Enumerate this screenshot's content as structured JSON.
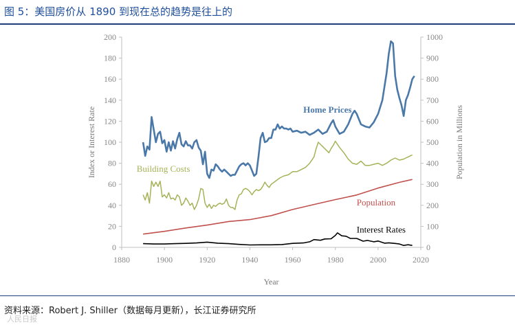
{
  "header": {
    "figure_title": "图 5：美国房价从 1890 到现在总的趋势是往上的"
  },
  "footer": {
    "source": "资料来源：Robert J. Shiller（数据每月更新），长江证券研究所",
    "watermark": "人民日报"
  },
  "chart_data": {
    "type": "line",
    "title": "",
    "xlabel": "Year",
    "ylabel_left": "Index or Interest Rate",
    "ylabel_right": "Population in Millions",
    "xlim": [
      1880,
      2020
    ],
    "ylim_left": [
      0,
      200
    ],
    "ylim_right": [
      0,
      1000
    ],
    "x_ticks": [
      1880,
      1900,
      1920,
      1940,
      1960,
      1980,
      2000,
      2020
    ],
    "y_ticks_left": [
      0,
      20,
      40,
      60,
      80,
      100,
      120,
      140,
      160,
      180,
      200
    ],
    "y_ticks_right": [
      0,
      100,
      200,
      300,
      400,
      500,
      600,
      700,
      800,
      900,
      1000
    ],
    "grid": false,
    "series": [
      {
        "name": "Home Prices",
        "axis": "left",
        "color": "#4a78a8",
        "x": [
          1890,
          1891,
          1892,
          1893,
          1894,
          1895,
          1896,
          1897,
          1898,
          1899,
          1900,
          1901,
          1902,
          1903,
          1904,
          1905,
          1906,
          1907,
          1908,
          1909,
          1910,
          1911,
          1912,
          1913,
          1914,
          1915,
          1916,
          1917,
          1918,
          1919,
          1920,
          1921,
          1922,
          1923,
          1924,
          1925,
          1926,
          1927,
          1928,
          1929,
          1930,
          1931,
          1932,
          1933,
          1934,
          1935,
          1936,
          1937,
          1938,
          1939,
          1940,
          1941,
          1942,
          1943,
          1944,
          1945,
          1946,
          1947,
          1948,
          1949,
          1950,
          1951,
          1952,
          1953,
          1954,
          1955,
          1956,
          1957,
          1958,
          1959,
          1960,
          1962,
          1964,
          1966,
          1968,
          1970,
          1972,
          1974,
          1976,
          1978,
          1979,
          1980,
          1982,
          1984,
          1986,
          1988,
          1989,
          1990,
          1992,
          1994,
          1996,
          1998,
          2000,
          2002,
          2004,
          2005,
          2006,
          2007,
          2008,
          2009,
          2010,
          2011,
          2012,
          2013,
          2014,
          2015,
          2016,
          2017
        ],
        "values": [
          100,
          87,
          96,
          93,
          124,
          112,
          100,
          108,
          110,
          99,
          102,
          91,
          100,
          92,
          101,
          94,
          103,
          109,
          98,
          96,
          101,
          97,
          97,
          94,
          100,
          102,
          95,
          92,
          79,
          91,
          70,
          66,
          74,
          73,
          79,
          77,
          74,
          72,
          74,
          72,
          70,
          68,
          69,
          69,
          73,
          77,
          79,
          80,
          78,
          80,
          78,
          73,
          68,
          70,
          86,
          104,
          109,
          100,
          101,
          104,
          104,
          112,
          112,
          117,
          113,
          115,
          113,
          113,
          112,
          113,
          110,
          111,
          109,
          110,
          107,
          109,
          112,
          108,
          110,
          118,
          121,
          115,
          108,
          110,
          117,
          127,
          130,
          127,
          117,
          115,
          114,
          119,
          127,
          140,
          166,
          184,
          196,
          194,
          163,
          150,
          142,
          135,
          125,
          140,
          145,
          152,
          160,
          163
        ]
      },
      {
        "name": "Building Costs",
        "axis": "left",
        "color": "#a6b257",
        "x": [
          1890,
          1891,
          1892,
          1893,
          1894,
          1895,
          1896,
          1897,
          1898,
          1899,
          1900,
          1901,
          1902,
          1903,
          1904,
          1905,
          1906,
          1907,
          1908,
          1909,
          1910,
          1911,
          1912,
          1913,
          1914,
          1915,
          1916,
          1917,
          1918,
          1919,
          1920,
          1921,
          1922,
          1923,
          1924,
          1925,
          1926,
          1927,
          1928,
          1929,
          1930,
          1931,
          1932,
          1933,
          1934,
          1935,
          1936,
          1937,
          1938,
          1939,
          1940,
          1941,
          1942,
          1943,
          1944,
          1945,
          1946,
          1947,
          1948,
          1949,
          1950,
          1952,
          1954,
          1956,
          1958,
          1960,
          1962,
          1964,
          1966,
          1968,
          1970,
          1971,
          1972,
          1973,
          1974,
          1975,
          1976,
          1977,
          1978,
          1979,
          1980,
          1982,
          1984,
          1986,
          1988,
          1990,
          1992,
          1994,
          1996,
          1998,
          2000,
          2002,
          2004,
          2006,
          2008,
          2010,
          2012,
          2014,
          2016
        ],
        "values": [
          50,
          45,
          52,
          42,
          63,
          58,
          62,
          58,
          63,
          48,
          50,
          47,
          52,
          46,
          47,
          45,
          50,
          48,
          40,
          42,
          47,
          44,
          40,
          42,
          36,
          40,
          46,
          56,
          55,
          42,
          38,
          41,
          37,
          40,
          39,
          41,
          42,
          41,
          42,
          46,
          40,
          38,
          38,
          36,
          45,
          50,
          51,
          55,
          56,
          55,
          53,
          50,
          53,
          55,
          54,
          55,
          58,
          62,
          59,
          57,
          60,
          63,
          66,
          68,
          69,
          72,
          72,
          74,
          76,
          80,
          86,
          94,
          100,
          98,
          96,
          94,
          92,
          90,
          94,
          97,
          101,
          95,
          90,
          84,
          80,
          79,
          82,
          78,
          78,
          79,
          80,
          78,
          80,
          83,
          85,
          83,
          84,
          86,
          88
        ]
      },
      {
        "name": "Population",
        "axis": "right",
        "color": "#c0504d",
        "x": [
          1890,
          1900,
          1910,
          1920,
          1930,
          1940,
          1950,
          1960,
          1970,
          1980,
          1990,
          2000,
          2010,
          2016
        ],
        "values": [
          63,
          76,
          92,
          106,
          123,
          132,
          151,
          180,
          204,
          227,
          249,
          282,
          309,
          323
        ]
      },
      {
        "name": "Interest Rates",
        "axis": "left",
        "color": "#000000",
        "x": [
          1890,
          1895,
          1900,
          1905,
          1910,
          1915,
          1920,
          1925,
          1930,
          1935,
          1940,
          1945,
          1950,
          1955,
          1960,
          1965,
          1968,
          1970,
          1973,
          1975,
          1978,
          1980,
          1981,
          1983,
          1985,
          1987,
          1990,
          1993,
          1995,
          1998,
          2000,
          2003,
          2005,
          2008,
          2010,
          2012,
          2014,
          2016
        ],
        "values": [
          3.5,
          3.2,
          3.2,
          3.5,
          3.8,
          4.2,
          5.0,
          4.0,
          3.5,
          2.8,
          2.3,
          2.4,
          2.4,
          2.7,
          3.8,
          4.2,
          5.3,
          7.4,
          6.7,
          8.0,
          8.2,
          11.4,
          13.8,
          11.0,
          10.6,
          8.5,
          8.5,
          5.9,
          6.6,
          5.3,
          6.0,
          4.0,
          4.3,
          3.7,
          3.2,
          1.8,
          2.5,
          1.8
        ]
      }
    ],
    "annotations": [
      {
        "text": "Home Prices",
        "series": "Home Prices",
        "x": 1965,
        "y": 128
      },
      {
        "text": "Building Costs",
        "series": "Building Costs",
        "x": 1887,
        "y": 72
      },
      {
        "text": "Population",
        "series": "Population",
        "x": 1990,
        "y": 40
      },
      {
        "text": "Interest Rates",
        "series": "Interest Rates",
        "x": 1990,
        "y": 14
      }
    ]
  }
}
